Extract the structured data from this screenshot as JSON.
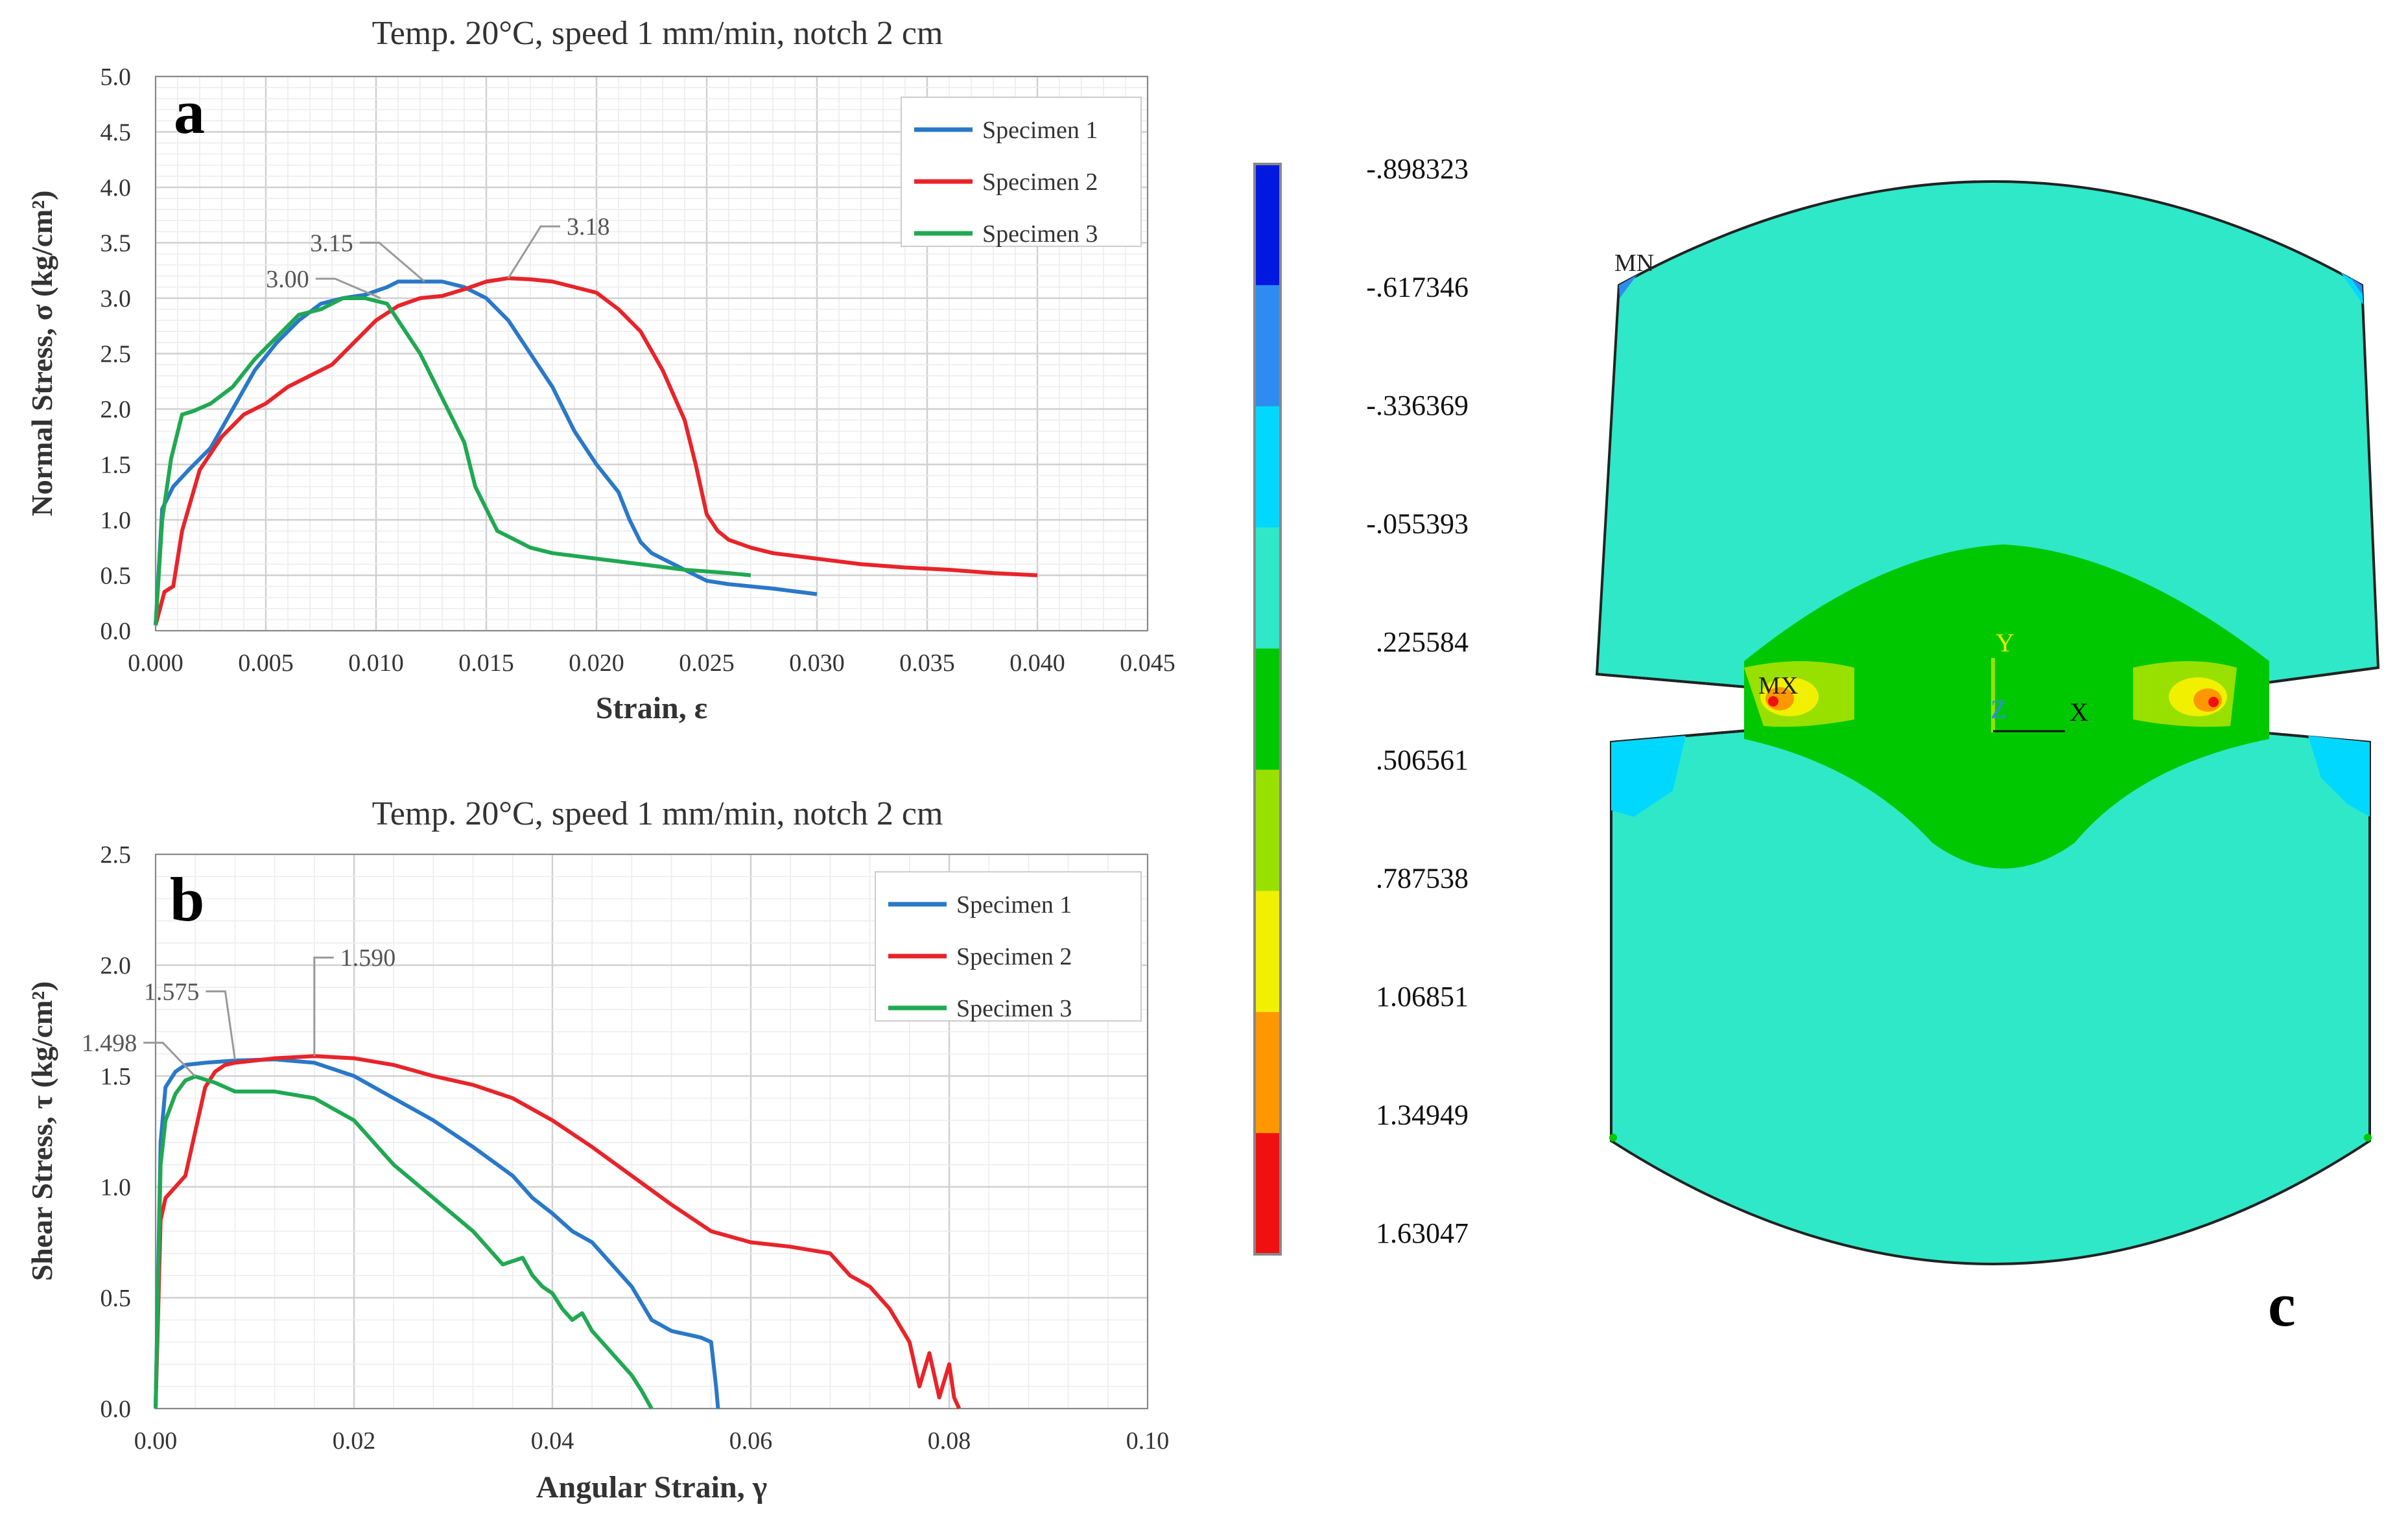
{
  "chart_data": [
    {
      "id": "a",
      "type": "line",
      "panel_letter": "a",
      "title": "Temp. 20°C, speed 1 mm/min, notch 2 cm",
      "xlabel": "Strain, ε",
      "ylabel": "Normal Stress, σ (kg/cm²)",
      "xlim": [
        0,
        0.045
      ],
      "ylim": [
        0,
        5.0
      ],
      "xticks": [
        "0.000",
        "0.005",
        "0.010",
        "0.015",
        "0.020",
        "0.025",
        "0.030",
        "0.035",
        "0.040",
        "0.045"
      ],
      "yticks": [
        "0.0",
        "0.5",
        "1.0",
        "1.5",
        "2.0",
        "2.5",
        "3.0",
        "3.5",
        "4.0",
        "4.5",
        "5.0"
      ],
      "grid": true,
      "legend_position": "top-right",
      "series": [
        {
          "name": "Specimen 1",
          "color": "#2a78c8",
          "x": [
            0,
            0.0003,
            0.0008,
            0.0015,
            0.0025,
            0.0035,
            0.0045,
            0.0055,
            0.0065,
            0.0075,
            0.0085,
            0.0095,
            0.0105,
            0.011,
            0.012,
            0.013,
            0.014,
            0.015,
            0.016,
            0.017,
            0.018,
            0.019,
            0.02,
            0.021,
            0.0215,
            0.022,
            0.0225,
            0.023,
            0.0235,
            0.024,
            0.025,
            0.026,
            0.028,
            0.03
          ],
          "y": [
            0.05,
            1.1,
            1.3,
            1.45,
            1.65,
            2.0,
            2.35,
            2.6,
            2.8,
            2.95,
            3.0,
            3.03,
            3.1,
            3.15,
            3.15,
            3.15,
            3.1,
            3.0,
            2.8,
            2.5,
            2.2,
            1.8,
            1.5,
            1.25,
            1.0,
            0.8,
            0.7,
            0.65,
            0.6,
            0.55,
            0.45,
            0.42,
            0.38,
            0.33
          ]
        },
        {
          "name": "Specimen 2",
          "color": "#e8242a",
          "x": [
            0,
            0.0004,
            0.0008,
            0.0012,
            0.002,
            0.003,
            0.004,
            0.005,
            0.006,
            0.007,
            0.008,
            0.009,
            0.01,
            0.011,
            0.012,
            0.013,
            0.014,
            0.015,
            0.016,
            0.017,
            0.018,
            0.019,
            0.02,
            0.021,
            0.022,
            0.023,
            0.024,
            0.0245,
            0.025,
            0.0255,
            0.026,
            0.027,
            0.028,
            0.03,
            0.032,
            0.034,
            0.036,
            0.038,
            0.04
          ],
          "y": [
            0.05,
            0.35,
            0.4,
            0.9,
            1.45,
            1.75,
            1.95,
            2.05,
            2.2,
            2.3,
            2.4,
            2.6,
            2.8,
            2.93,
            3.0,
            3.02,
            3.08,
            3.15,
            3.18,
            3.17,
            3.15,
            3.1,
            3.05,
            2.9,
            2.7,
            2.35,
            1.9,
            1.5,
            1.05,
            0.9,
            0.82,
            0.75,
            0.7,
            0.65,
            0.6,
            0.57,
            0.55,
            0.52,
            0.5
          ]
        },
        {
          "name": "Specimen 3",
          "color": "#20a852",
          "x": [
            0,
            0.0003,
            0.0007,
            0.0012,
            0.0017,
            0.0025,
            0.0035,
            0.0045,
            0.0055,
            0.0065,
            0.0075,
            0.0085,
            0.0095,
            0.0105,
            0.011,
            0.012,
            0.013,
            0.014,
            0.0145,
            0.015,
            0.0155,
            0.016,
            0.0165,
            0.017,
            0.018,
            0.02,
            0.022,
            0.024,
            0.026,
            0.027
          ],
          "y": [
            0.05,
            1.0,
            1.55,
            1.95,
            1.98,
            2.05,
            2.2,
            2.45,
            2.65,
            2.85,
            2.9,
            3.0,
            3.0,
            2.95,
            2.8,
            2.5,
            2.1,
            1.7,
            1.3,
            1.1,
            0.9,
            0.85,
            0.8,
            0.75,
            0.7,
            0.65,
            0.6,
            0.55,
            0.52,
            0.5
          ]
        }
      ],
      "annotations": [
        {
          "text": "3.15",
          "x": 0.0122,
          "y": 3.15
        },
        {
          "text": "3.18",
          "x": 0.016,
          "y": 3.18
        },
        {
          "text": "3.00",
          "x": 0.0102,
          "y": 3.0
        }
      ]
    },
    {
      "id": "b",
      "type": "line",
      "panel_letter": "b",
      "title": "Temp. 20°C, speed 1 mm/min, notch 2 cm",
      "xlabel": "Angular Strain, γ",
      "ylabel": "Shear Stress, τ (kg/cm²)",
      "xlim": [
        0,
        0.1
      ],
      "ylim": [
        0,
        2.5
      ],
      "xticks": [
        "0.00",
        "0.02",
        "0.04",
        "0.06",
        "0.08",
        "0.10"
      ],
      "yticks": [
        "0.0",
        "0.5",
        "1.0",
        "1.5",
        "2.0",
        "2.5"
      ],
      "grid": true,
      "legend_position": "top-right",
      "series": [
        {
          "name": "Specimen 1",
          "color": "#2a78c8",
          "x": [
            0,
            0.0005,
            0.001,
            0.002,
            0.003,
            0.005,
            0.008,
            0.012,
            0.016,
            0.02,
            0.024,
            0.028,
            0.032,
            0.036,
            0.038,
            0.04,
            0.042,
            0.044,
            0.046,
            0.048,
            0.05,
            0.052,
            0.054,
            0.055,
            0.056,
            0.0565,
            0.0567
          ],
          "y": [
            0.0,
            1.2,
            1.45,
            1.52,
            1.55,
            1.56,
            1.57,
            1.575,
            1.56,
            1.5,
            1.4,
            1.3,
            1.18,
            1.05,
            0.95,
            0.88,
            0.8,
            0.75,
            0.65,
            0.55,
            0.4,
            0.35,
            0.33,
            0.32,
            0.3,
            0.1,
            0.0
          ]
        },
        {
          "name": "Specimen 2",
          "color": "#e8242a",
          "x": [
            0,
            0.0005,
            0.001,
            0.002,
            0.003,
            0.004,
            0.005,
            0.006,
            0.007,
            0.008,
            0.01,
            0.012,
            0.016,
            0.02,
            0.024,
            0.028,
            0.032,
            0.036,
            0.04,
            0.044,
            0.048,
            0.052,
            0.056,
            0.06,
            0.064,
            0.068,
            0.07,
            0.072,
            0.074,
            0.076,
            0.077,
            0.078,
            0.079,
            0.08,
            0.0805,
            0.081
          ],
          "y": [
            0.0,
            0.85,
            0.95,
            1.0,
            1.05,
            1.25,
            1.45,
            1.52,
            1.55,
            1.56,
            1.57,
            1.58,
            1.59,
            1.58,
            1.55,
            1.5,
            1.46,
            1.4,
            1.3,
            1.18,
            1.05,
            0.92,
            0.8,
            0.75,
            0.73,
            0.7,
            0.6,
            0.55,
            0.45,
            0.3,
            0.1,
            0.25,
            0.05,
            0.2,
            0.05,
            0.0
          ]
        },
        {
          "name": "Specimen 3",
          "color": "#20a852",
          "x": [
            0,
            0.0005,
            0.001,
            0.002,
            0.003,
            0.004,
            0.006,
            0.008,
            0.012,
            0.016,
            0.02,
            0.024,
            0.028,
            0.032,
            0.035,
            0.037,
            0.038,
            0.039,
            0.04,
            0.041,
            0.042,
            0.043,
            0.044,
            0.045,
            0.046,
            0.047,
            0.048,
            0.049,
            0.05
          ],
          "y": [
            0.0,
            1.1,
            1.3,
            1.42,
            1.48,
            1.498,
            1.47,
            1.43,
            1.43,
            1.4,
            1.3,
            1.1,
            0.95,
            0.8,
            0.65,
            0.68,
            0.6,
            0.55,
            0.52,
            0.45,
            0.4,
            0.43,
            0.35,
            0.3,
            0.25,
            0.2,
            0.15,
            0.08,
            0.0
          ]
        }
      ],
      "annotations": [
        {
          "text": "1.498",
          "x": 0.004,
          "y": 1.498
        },
        {
          "text": "1.575",
          "x": 0.008,
          "y": 1.575
        },
        {
          "text": "1.590",
          "x": 0.016,
          "y": 1.59
        }
      ]
    }
  ],
  "colorbar": {
    "labels": [
      "-.898323",
      "-.617346",
      "-.336369",
      "-.055393",
      ".225584",
      ".506561",
      ".787538",
      "1.06851",
      "1.34949",
      "1.63047"
    ],
    "colors": [
      "#0018e0",
      "#2e8cf0",
      "#00d8ff",
      "#2ee8c8",
      "#00c800",
      "#98e000",
      "#f0f000",
      "#ff9800",
      "#f01010"
    ]
  },
  "contour_plot": {
    "panel_letter": "c",
    "label_mn": "MN",
    "label_mx": "MX",
    "axis_y": "Y",
    "axis_x": "X",
    "axis_z": "Z"
  }
}
